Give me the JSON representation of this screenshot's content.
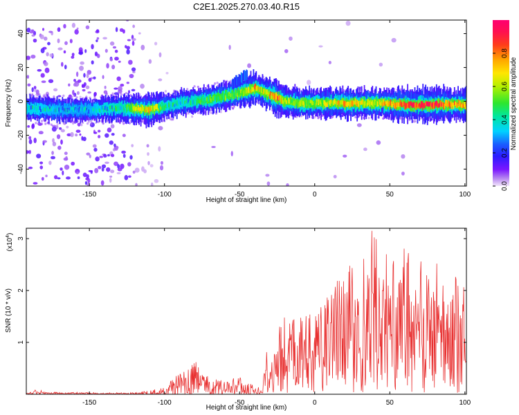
{
  "title": "C2E1.2025.270.03.40.R15",
  "chart_data": [
    {
      "type": "heatmap",
      "title": "C2E1.2025.270.03.40.R15",
      "xlabel": "Height of straight line (km)",
      "ylabel": "Frequency (Hz)",
      "xlim": [
        -192,
        101
      ],
      "ylim": [
        -50,
        48
      ],
      "xticks": [
        -150,
        -100,
        -50,
        0,
        50,
        100
      ],
      "xtick_labels": [
        "-150",
        "-100",
        "-50",
        "0",
        "50",
        "100"
      ],
      "yticks": [
        -40,
        -20,
        0,
        20,
        40
      ],
      "ytick_labels": [
        "-40",
        "-20",
        "0",
        "20",
        "40"
      ],
      "colorbar": {
        "label": "Normalized spectral amplitude",
        "range": [
          0,
          1
        ],
        "ticks": [
          0.0,
          0.2,
          0.4,
          0.6,
          0.8
        ],
        "tick_labels": [
          "0.0",
          "0.2",
          "0.4",
          "0.6",
          "0.8"
        ]
      },
      "ridge": {
        "x": [
          -192,
          -170,
          -150,
          -130,
          -110,
          -100,
          -90,
          -80,
          -70,
          -60,
          -50,
          -45,
          -40,
          -35,
          -30,
          -25,
          -20,
          -10,
          0,
          20,
          40,
          60,
          80,
          100
        ],
        "frequency": [
          -4,
          -5,
          -5,
          -4,
          -5,
          -3,
          -1,
          0,
          1,
          3,
          5,
          6,
          8,
          6,
          4,
          2,
          0,
          -1,
          -1,
          -1,
          -1,
          -2,
          -2,
          -2
        ],
        "amplitude": [
          0.35,
          0.3,
          0.3,
          0.4,
          0.7,
          0.4,
          0.35,
          0.4,
          0.5,
          0.5,
          0.55,
          0.6,
          0.75,
          0.6,
          0.7,
          0.85,
          0.55,
          0.6,
          0.55,
          0.7,
          0.6,
          0.85,
          0.9,
          0.7
        ]
      },
      "secondary_feature": {
        "x": [
          -55,
          -45
        ],
        "frequency": [
          10,
          16
        ]
      }
    },
    {
      "type": "line",
      "xlabel": "Height of straight line (km)",
      "ylabel": "SNR (10 * v/v)",
      "scale_label": "(x10",
      "scale_exponent": "4",
      "scale_suffix": ")",
      "xlim": [
        -192,
        101
      ],
      "ylim": [
        0,
        3.2
      ],
      "xticks": [
        -150,
        -100,
        -50,
        0,
        50,
        100
      ],
      "xtick_labels": [
        "-150",
        "-100",
        "-50",
        "0",
        "50",
        "100"
      ],
      "yticks": [
        1,
        2,
        3
      ],
      "ytick_labels": [
        "1",
        "2",
        "3"
      ],
      "color": "#e83030",
      "envelope": {
        "x": [
          -192,
          -185,
          -180,
          -120,
          -105,
          -95,
          -85,
          -78,
          -75,
          -70,
          -60,
          -55,
          -50,
          -45,
          -40,
          -35,
          -32,
          -30,
          -25,
          -20,
          -10,
          0,
          10,
          20,
          25,
          30,
          35,
          40,
          45,
          50,
          55,
          60,
          65,
          70,
          75,
          80,
          85,
          90,
          95,
          100
        ],
        "mean": [
          0.01,
          0.05,
          0.02,
          0.01,
          0.02,
          0.1,
          0.12,
          0.2,
          0.15,
          0.1,
          0.1,
          0.12,
          0.12,
          0.08,
          0.05,
          0.05,
          0.3,
          0.35,
          0.5,
          0.6,
          0.7,
          0.75,
          0.85,
          1.0,
          1.1,
          1.1,
          1.15,
          1.25,
          1.25,
          1.2,
          1.25,
          1.2,
          1.15,
          1.15,
          1.1,
          1.1,
          1.0,
          0.95,
          0.9,
          0.85
        ],
        "max": [
          0.02,
          0.12,
          0.04,
          0.03,
          0.1,
          0.3,
          0.5,
          0.65,
          0.4,
          0.35,
          0.25,
          0.3,
          0.35,
          0.25,
          0.15,
          0.12,
          0.85,
          1.0,
          1.3,
          1.5,
          1.65,
          1.5,
          2.0,
          2.5,
          2.6,
          2.8,
          3.0,
          3.15,
          2.9,
          2.6,
          2.7,
          2.85,
          2.6,
          2.7,
          2.5,
          2.6,
          2.4,
          2.5,
          2.4,
          2.2
        ]
      },
      "peak": {
        "x": 38,
        "y": 3.15
      }
    }
  ]
}
